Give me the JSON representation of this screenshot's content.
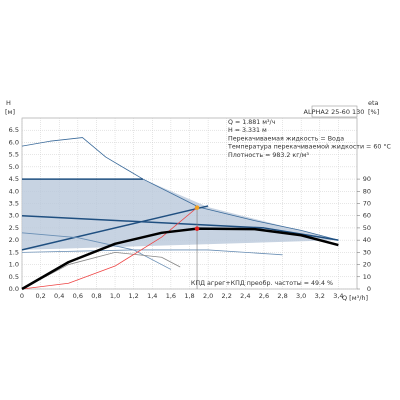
{
  "chart_data": {
    "type": "line",
    "ylabel": "H",
    "yunit": "[м]",
    "y2label": "eta",
    "y2unit": "[%]",
    "xlabel": "Q [м³/h]",
    "model": "ALPHA2 25-60 130",
    "info": [
      "Q = 1.881 м³/ч",
      "H = 3.331 м",
      "Перекачиваемая жидкость = Вода",
      "Температура перекачиваемой жидкости = 60 °C",
      "Плотность = 983.2 кг/м³"
    ],
    "footer": "КПД агрег+КПД преобр. частоты = 49.4 %",
    "xlim": [
      0,
      3.6
    ],
    "ylim": [
      0,
      7
    ],
    "y2lim": [
      0,
      140
    ],
    "grid": true,
    "xticks": [
      0,
      {
        "value": 0.2,
        "label": "0,2"
      },
      {
        "value": 0.4,
        "label": "0,4"
      },
      {
        "value": 0.6,
        "label": "0,6"
      },
      {
        "value": 0.8,
        "label": "0,8"
      },
      {
        "value": 1.0,
        "label": "1,0"
      },
      {
        "value": 1.2,
        "label": "1,2"
      },
      {
        "value": 1.4,
        "label": "1,4"
      },
      {
        "value": 1.6,
        "label": "1,6"
      },
      {
        "value": 1.8,
        "label": "1,8"
      },
      {
        "value": 2.0,
        "label": "2,0"
      },
      {
        "value": 2.2,
        "label": "2,2"
      },
      {
        "value": 2.4,
        "label": "2,4"
      },
      {
        "value": 2.6,
        "label": "2,6"
      },
      {
        "value": 2.8,
        "label": "2,8"
      },
      {
        "value": 3.0,
        "label": "3,0"
      },
      {
        "value": 3.2,
        "label": "3,2"
      },
      {
        "value": 3.4,
        "label": "3,4"
      }
    ],
    "yticks": [
      {
        "value": 0,
        "label": "0.0"
      },
      0.5,
      {
        "value": 1,
        "label": "1.0"
      },
      1.5,
      {
        "value": 2,
        "label": "2.0"
      },
      2.5,
      {
        "value": 3,
        "label": "3.0"
      },
      3.5,
      {
        "value": 4,
        "label": "4.0"
      },
      4.5,
      {
        "value": 5,
        "label": "5.0"
      },
      5.5,
      {
        "value": 6,
        "label": "6.0"
      },
      6.5
    ],
    "y2ticks": [
      0,
      10,
      20,
      30,
      40,
      50,
      60,
      70,
      80,
      90
    ],
    "series": [
      {
        "color": "#b9c8db",
        "fill": true,
        "x": [
          0,
          1.3,
          2.0,
          3.4,
          0
        ],
        "values": [
          4.5,
          4.5,
          3.35,
          2.0,
          1.6
        ]
      },
      {
        "color": "#3a6a9a",
        "x": [
          0,
          0.3,
          0.65,
          0.9,
          1.3,
          1.9,
          2.5,
          3.0,
          3.4
        ],
        "values": [
          5.85,
          6.05,
          6.2,
          5.4,
          4.5,
          3.35,
          2.8,
          2.4,
          2.0
        ]
      },
      {
        "color": "#1f4f80",
        "width": 1.5,
        "x": [
          0,
          1.3
        ],
        "values": [
          4.5,
          4.5
        ]
      },
      {
        "color": "#1f4f80",
        "width": 1.5,
        "x": [
          0,
          2.0
        ],
        "values": [
          1.6,
          3.4
        ]
      },
      {
        "color": "#1f4f80",
        "width": 1.5,
        "x": [
          0,
          2.6,
          3.4
        ],
        "values": [
          3.0,
          2.5,
          2.0
        ]
      },
      {
        "color": "#6a8fb5",
        "x": [
          0,
          1.2,
          2.0,
          2.8
        ],
        "values": [
          1.5,
          1.6,
          1.6,
          1.4
        ]
      },
      {
        "color": "#6a8fb5",
        "x": [
          0,
          0.6,
          1.2,
          1.6
        ],
        "values": [
          2.3,
          2.1,
          1.6,
          0.8
        ]
      },
      {
        "color": "#888888",
        "x": [
          0,
          0.5,
          1.0,
          1.5,
          1.7
        ],
        "values": [
          0,
          1.0,
          1.5,
          1.3,
          0.9
        ]
      },
      {
        "color": "#ee4444",
        "x": [
          0,
          0.5,
          1.0,
          1.5,
          1.881
        ],
        "values": [
          0,
          0.235,
          0.94,
          2.12,
          3.331
        ]
      },
      {
        "color": "#000000",
        "width": 2.5,
        "axis": "y2",
        "x": [
          0,
          0.5,
          1.0,
          1.5,
          1.881,
          2.5,
          3.0,
          3.4
        ],
        "values": [
          0,
          22,
          37,
          46,
          49.4,
          49,
          44,
          36
        ]
      }
    ],
    "markers": [
      {
        "x": 1.881,
        "y": 3.331,
        "color": "#f0a020"
      },
      {
        "x": 1.881,
        "y2": 49.4,
        "color": "#dd2222"
      }
    ]
  }
}
